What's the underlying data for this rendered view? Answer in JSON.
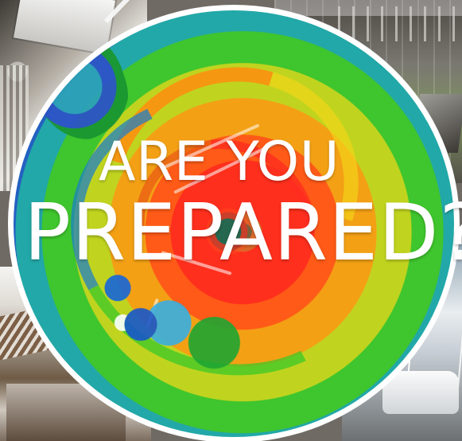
{
  "image": {
    "headline": {
      "line1": "ARE YOU",
      "line2": "PREPARED?"
    },
    "colors": {
      "text": "#ffffff",
      "circle_border": "#ffffff",
      "hurricane_core": "#ff2f1d",
      "hurricane_outer": "#1f5fc0"
    }
  }
}
